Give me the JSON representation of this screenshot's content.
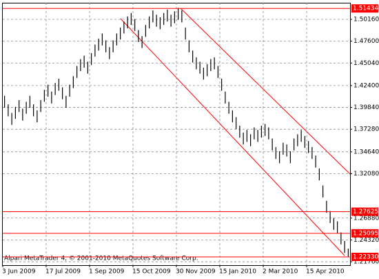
{
  "chart_data": {
    "type": "ohlc",
    "watermark": "Alpari MetaTrader 4, © 2001-2010 MetaQuotes Software Corp.",
    "categories": [
      "3 Jun 2009",
      null,
      null,
      null,
      null,
      null,
      null,
      null,
      null,
      null,
      null,
      null,
      "17 Jul 2009",
      null,
      null,
      null,
      null,
      null,
      null,
      null,
      null,
      null,
      null,
      null,
      "1 Sep 2009",
      null,
      null,
      null,
      null,
      null,
      null,
      null,
      null,
      null,
      null,
      null,
      "15 Oct 2009",
      null,
      null,
      null,
      null,
      null,
      null,
      null,
      null,
      null,
      null,
      null,
      "30 Nov 2009",
      null,
      null,
      null,
      null,
      null,
      null,
      null,
      null,
      null,
      null,
      null,
      "15 Jan 2010",
      null,
      null,
      null,
      null,
      null,
      null,
      null,
      null,
      null,
      null,
      null,
      "2 Mar 2010",
      null,
      null,
      null,
      null,
      null,
      null,
      null,
      null,
      null,
      null,
      null,
      "15 Apr 2010",
      null,
      null,
      null,
      null,
      null,
      null,
      null,
      null,
      null,
      null,
      null
    ],
    "high": [
      1.412,
      1.402,
      1.392,
      1.399,
      1.407,
      1.397,
      1.405,
      1.412,
      1.402,
      1.395,
      1.407,
      1.419,
      1.425,
      1.417,
      1.427,
      1.432,
      1.422,
      1.412,
      1.425,
      1.435,
      1.447,
      1.455,
      1.459,
      1.452,
      1.462,
      1.472,
      1.479,
      1.485,
      1.477,
      1.469,
      1.477,
      1.485,
      1.492,
      1.499,
      1.505,
      1.509,
      1.502,
      1.489,
      1.482,
      1.495,
      1.505,
      1.512,
      1.507,
      1.504,
      1.509,
      1.513,
      1.507,
      1.511,
      1.515,
      1.512,
      1.492,
      1.477,
      1.465,
      1.457,
      1.452,
      1.445,
      1.449,
      1.455,
      1.457,
      1.447,
      1.432,
      1.417,
      1.405,
      1.395,
      1.387,
      1.377,
      1.369,
      1.372,
      1.367,
      1.375,
      1.372,
      1.377,
      1.379,
      1.375,
      1.362,
      1.352,
      1.347,
      1.357,
      1.355,
      1.347,
      1.362,
      1.367,
      1.372,
      1.365,
      1.359,
      1.352,
      1.342,
      1.327,
      1.307,
      1.289,
      1.277,
      1.269,
      1.265,
      1.252,
      1.242,
      1.233
    ],
    "low": [
      1.398,
      1.388,
      1.378,
      1.385,
      1.393,
      1.383,
      1.391,
      1.398,
      1.388,
      1.381,
      1.393,
      1.405,
      1.411,
      1.403,
      1.413,
      1.418,
      1.408,
      1.398,
      1.411,
      1.421,
      1.433,
      1.441,
      1.445,
      1.438,
      1.448,
      1.458,
      1.465,
      1.471,
      1.463,
      1.455,
      1.463,
      1.471,
      1.478,
      1.485,
      1.491,
      1.495,
      1.488,
      1.475,
      1.468,
      1.481,
      1.491,
      1.498,
      1.493,
      1.49,
      1.495,
      1.499,
      1.493,
      1.497,
      1.501,
      1.498,
      1.478,
      1.463,
      1.451,
      1.443,
      1.438,
      1.431,
      1.435,
      1.441,
      1.443,
      1.433,
      1.418,
      1.403,
      1.391,
      1.381,
      1.373,
      1.363,
      1.355,
      1.358,
      1.353,
      1.361,
      1.358,
      1.363,
      1.365,
      1.361,
      1.348,
      1.338,
      1.333,
      1.343,
      1.341,
      1.333,
      1.348,
      1.353,
      1.358,
      1.351,
      1.345,
      1.338,
      1.328,
      1.313,
      1.293,
      1.275,
      1.263,
      1.255,
      1.251,
      1.238,
      1.228,
      1.2233
    ],
    "color": "#000000",
    "ylim": [
      1.2136,
      1.521
    ],
    "yticks": [
      {
        "value": 1.5016,
        "label": "1.50160"
      },
      {
        "value": 1.476,
        "label": "1.47600"
      },
      {
        "value": 1.4504,
        "label": "1.45040"
      },
      {
        "value": 1.424,
        "label": "1.42400"
      },
      {
        "value": 1.3984,
        "label": "1.39840"
      },
      {
        "value": 1.3728,
        "label": "1.37280"
      },
      {
        "value": 1.3464,
        "label": "1.34640"
      },
      {
        "value": 1.3208,
        "label": "1.32080"
      },
      {
        "value": 1.2688,
        "label": "1.26880"
      },
      {
        "value": 1.2432,
        "label": "1.24320"
      },
      {
        "value": 1.2176,
        "label": "1.21760"
      }
    ],
    "levels": [
      1.51434,
      1.27625,
      1.25095,
      {
        "value": 1.2233,
        "label": "1.22330"
      }
    ],
    "level_color": "#ff0000",
    "grid": true
  }
}
